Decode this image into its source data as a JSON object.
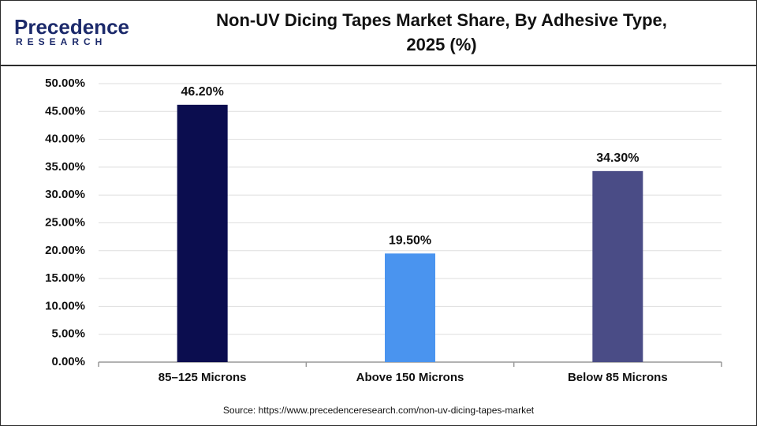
{
  "logo": {
    "name": "Precedence",
    "sub": "RESEARCH"
  },
  "chart_data": {
    "type": "bar",
    "title": [
      "Non-UV Dicing Tapes Market Share, By Adhesive Type,",
      "2025 (%)"
    ],
    "categories": [
      "85–125 Microns",
      "Above 150 Microns",
      "Below 85 Microns"
    ],
    "values": [
      46.2,
      19.5,
      34.3
    ],
    "value_labels": [
      "46.20%",
      "19.50%",
      "34.30%"
    ],
    "colors": [
      "#0b0d4f",
      "#4a94ef",
      "#4a4c86"
    ],
    "ylim": [
      0,
      50
    ],
    "yticks": [
      {
        "value": 0,
        "label": "0.00%"
      },
      {
        "value": 5,
        "label": "5.00%"
      },
      {
        "value": 10,
        "label": "10.00%"
      },
      {
        "value": 15,
        "label": "15.00%"
      },
      {
        "value": 20,
        "label": "20.00%"
      },
      {
        "value": 25,
        "label": "25.00%"
      },
      {
        "value": 30,
        "label": "30.00%"
      },
      {
        "value": 35,
        "label": "35.00%"
      },
      {
        "value": 40,
        "label": "40.00%"
      },
      {
        "value": 45,
        "label": "45.00%"
      },
      {
        "value": 50,
        "label": "50.00%"
      }
    ],
    "grid": true,
    "source": "Source: https://www.precedenceresearch.com/non-uv-dicing-tapes-market"
  }
}
